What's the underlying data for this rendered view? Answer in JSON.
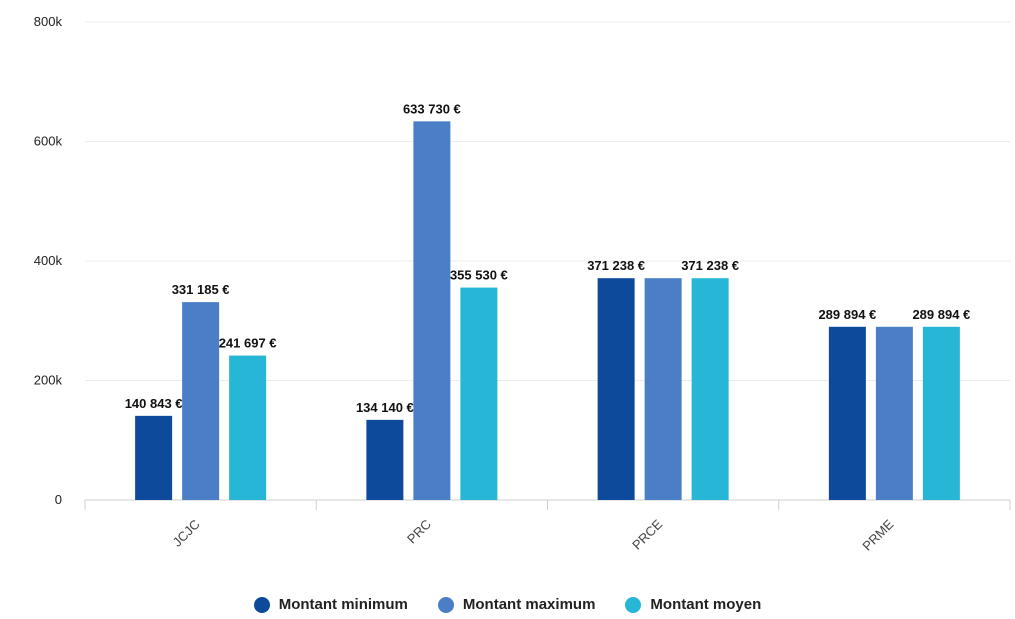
{
  "chart_data": {
    "type": "bar",
    "categories": [
      "JCJC",
      "PRC",
      "PRCE",
      "PRME"
    ],
    "series": [
      {
        "name": "Montant minimum",
        "color": "#0d4a9b",
        "values": [
          140843,
          134140,
          371238,
          289894
        ],
        "labels": [
          "140 843 €",
          "134 140 €",
          "371 238 €",
          "289 894 €"
        ]
      },
      {
        "name": "Montant maximum",
        "color": "#4a7fc8",
        "values": [
          331185,
          633730,
          371238,
          289894
        ],
        "labels": [
          "331 185 €",
          "633 730 €",
          "",
          ""
        ]
      },
      {
        "name": "Montant moyen",
        "color": "#27b6d6",
        "values": [
          241697,
          355530,
          371238,
          289894
        ],
        "labels": [
          "241 697 €",
          "355 530 €",
          "371 238 €",
          "289 894 €"
        ]
      }
    ],
    "yticks": [
      0,
      200000,
      400000,
      600000,
      800000
    ],
    "ytick_labels": [
      "0",
      "200k",
      "400k",
      "600k",
      "800k"
    ],
    "ylim": [
      0,
      800000
    ],
    "grid": true,
    "legend_position": "bottom"
  }
}
